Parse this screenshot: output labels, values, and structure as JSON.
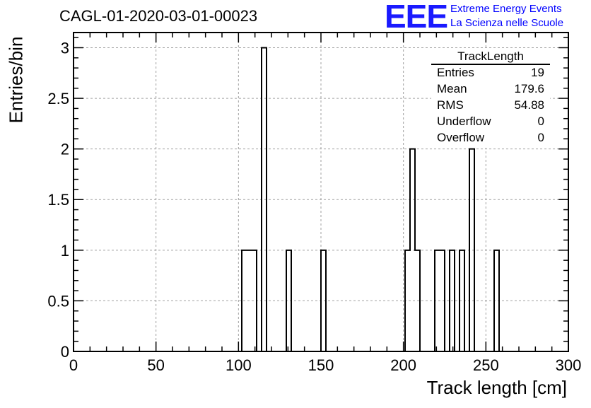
{
  "header": {
    "run_title": "CAGL-01-2020-03-01-00023"
  },
  "logo": {
    "mark": "EEE",
    "line1": "Extreme Energy Events",
    "line2": "La Scienza nelle Scuole",
    "color": "#1a1aff"
  },
  "stats": {
    "title": "TrackLength",
    "rows": [
      {
        "key": "Entries",
        "value": "19"
      },
      {
        "key": "Mean",
        "value": "179.6"
      },
      {
        "key": "RMS",
        "value": "54.88"
      },
      {
        "key": "Underflow",
        "value": "0"
      },
      {
        "key": "Overflow",
        "value": "0"
      }
    ]
  },
  "chart_data": {
    "type": "bar",
    "histogram": true,
    "xlabel": "Track length [cm]",
    "ylabel": "Entries/bin",
    "xlim": [
      0,
      300
    ],
    "ylim": [
      0,
      3.15
    ],
    "x_ticks": [
      "0",
      "50",
      "100",
      "150",
      "200",
      "250",
      "300"
    ],
    "y_ticks": [
      "0",
      "0.5",
      "1",
      "1.5",
      "2",
      "2.5",
      "3"
    ],
    "grid": true,
    "bin_width": 3,
    "bins": [
      {
        "x": 102,
        "value": 1
      },
      {
        "x": 105,
        "value": 1
      },
      {
        "x": 108,
        "value": 1
      },
      {
        "x": 114,
        "value": 3
      },
      {
        "x": 129,
        "value": 1
      },
      {
        "x": 150,
        "value": 1
      },
      {
        "x": 201,
        "value": 1
      },
      {
        "x": 204,
        "value": 2
      },
      {
        "x": 207,
        "value": 1
      },
      {
        "x": 219,
        "value": 1
      },
      {
        "x": 222,
        "value": 1
      },
      {
        "x": 228,
        "value": 1
      },
      {
        "x": 234,
        "value": 1
      },
      {
        "x": 240,
        "value": 2
      },
      {
        "x": 255,
        "value": 1
      }
    ]
  }
}
